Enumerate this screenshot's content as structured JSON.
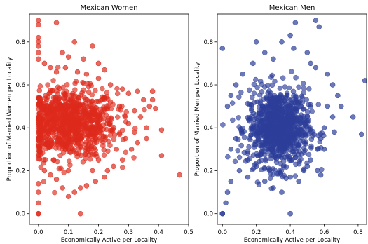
{
  "chart_data": [
    {
      "type": "scatter",
      "title": "Mexican Women",
      "xlabel": "Economically Active per Locality",
      "ylabel": "Proportion of Married Women per Locality",
      "xlim": [
        -0.03,
        0.5
      ],
      "ylim": [
        -0.05,
        0.93
      ],
      "xticks": [
        0.0,
        0.1,
        0.2,
        0.3,
        0.4,
        0.5
      ],
      "xtick_labels": [
        "0.0",
        "0.1",
        "0.2",
        "0.3",
        "0.4",
        "0.5"
      ],
      "yticks": [
        0.0,
        0.2,
        0.4,
        0.6,
        0.8
      ],
      "ytick_labels": [
        "0.0",
        "0.2",
        "0.4",
        "0.6",
        "0.8"
      ],
      "grid": false,
      "color": "#dd2a1b",
      "points": [
        [
          0.0,
          0.9
        ],
        [
          0.0,
          0.88
        ],
        [
          0.0,
          0.82
        ],
        [
          0.0,
          0.8
        ],
        [
          0.0,
          0.78
        ],
        [
          0.0,
          0.75
        ],
        [
          0.0,
          0.72
        ],
        [
          0.0,
          0.1
        ],
        [
          0.0,
          0.05
        ],
        [
          0.0,
          0.0
        ],
        [
          0.0,
          0.0
        ],
        [
          0.0,
          0.14
        ],
        [
          0.06,
          0.89
        ],
        [
          0.08,
          0.75
        ],
        [
          0.1,
          0.73
        ],
        [
          0.12,
          0.8
        ],
        [
          0.15,
          0.72
        ],
        [
          0.18,
          0.78
        ],
        [
          0.2,
          0.7
        ],
        [
          0.22,
          0.67
        ],
        [
          0.02,
          0.7
        ],
        [
          0.04,
          0.68
        ],
        [
          0.06,
          0.66
        ],
        [
          0.09,
          0.68
        ],
        [
          0.13,
          0.66
        ],
        [
          0.16,
          0.65
        ],
        [
          0.2,
          0.63
        ],
        [
          0.24,
          0.6
        ],
        [
          0.28,
          0.58
        ],
        [
          0.3,
          0.56
        ],
        [
          0.33,
          0.57
        ],
        [
          0.35,
          0.53
        ],
        [
          0.37,
          0.5
        ],
        [
          0.38,
          0.57
        ],
        [
          0.38,
          0.53
        ],
        [
          0.39,
          0.49
        ],
        [
          0.41,
          0.39
        ],
        [
          0.41,
          0.27
        ],
        [
          0.47,
          0.18
        ],
        [
          0.36,
          0.4
        ],
        [
          0.36,
          0.35
        ],
        [
          0.34,
          0.45
        ],
        [
          0.32,
          0.48
        ],
        [
          0.3,
          0.42
        ],
        [
          0.31,
          0.3
        ],
        [
          0.28,
          0.25
        ],
        [
          0.25,
          0.22
        ],
        [
          0.23,
          0.2
        ],
        [
          0.22,
          0.17
        ],
        [
          0.19,
          0.15
        ],
        [
          0.16,
          0.13
        ],
        [
          0.14,
          0.12
        ],
        [
          0.12,
          0.1
        ],
        [
          0.1,
          0.08
        ],
        [
          0.08,
          0.12
        ],
        [
          0.06,
          0.16
        ],
        [
          0.04,
          0.18
        ],
        [
          0.02,
          0.2
        ],
        [
          0.14,
          0.0
        ],
        [
          0.26,
          0.3
        ],
        [
          0.27,
          0.5
        ],
        [
          0.24,
          0.52
        ],
        [
          0.2,
          0.25
        ],
        [
          0.18,
          0.2
        ],
        [
          0.1,
          0.2
        ],
        [
          0.05,
          0.25
        ],
        [
          0.29,
          0.35
        ],
        [
          0.33,
          0.33
        ],
        [
          0.32,
          0.38
        ]
      ],
      "dense_region": {
        "x_center": 0.1,
        "y_center": 0.42,
        "x_spread": 0.08,
        "y_spread": 0.08
      }
    },
    {
      "type": "scatter",
      "title": "Mexican Men",
      "xlabel": "Economically Active per Locality",
      "ylabel": "Proportion of Married Men per Locality",
      "xlim": [
        -0.03,
        0.85
      ],
      "ylim": [
        -0.05,
        0.93
      ],
      "xticks": [
        0.0,
        0.2,
        0.4,
        0.6,
        0.8
      ],
      "xtick_labels": [
        "0.0",
        "0.2",
        "0.4",
        "0.6",
        "0.8"
      ],
      "yticks": [
        0.0,
        0.2,
        0.4,
        0.6,
        0.8
      ],
      "ytick_labels": [
        "0.0",
        "0.2",
        "0.4",
        "0.6",
        "0.8"
      ],
      "grid": false,
      "color": "#2c3e99",
      "points": [
        [
          0.0,
          0.77
        ],
        [
          0.0,
          0.0
        ],
        [
          0.0,
          0.0
        ],
        [
          0.02,
          0.05
        ],
        [
          0.03,
          0.1
        ],
        [
          0.05,
          0.15
        ],
        [
          0.4,
          0.0
        ],
        [
          0.55,
          0.9
        ],
        [
          0.57,
          0.87
        ],
        [
          0.43,
          0.89
        ],
        [
          0.4,
          0.83
        ],
        [
          0.35,
          0.8
        ],
        [
          0.2,
          0.8
        ],
        [
          0.42,
          0.77
        ],
        [
          0.84,
          0.62
        ],
        [
          0.82,
          0.37
        ],
        [
          0.77,
          0.45
        ],
        [
          0.7,
          0.5
        ],
        [
          0.68,
          0.55
        ],
        [
          0.65,
          0.6
        ],
        [
          0.62,
          0.65
        ],
        [
          0.6,
          0.4
        ],
        [
          0.58,
          0.35
        ],
        [
          0.56,
          0.3
        ],
        [
          0.52,
          0.25
        ],
        [
          0.56,
          0.2
        ],
        [
          0.58,
          0.18
        ],
        [
          0.48,
          0.2
        ],
        [
          0.45,
          0.15
        ],
        [
          0.35,
          0.1
        ],
        [
          0.3,
          0.12
        ],
        [
          0.25,
          0.15
        ],
        [
          0.15,
          0.17
        ],
        [
          0.1,
          0.2
        ],
        [
          0.05,
          0.3
        ],
        [
          0.03,
          0.5
        ],
        [
          0.05,
          0.55
        ],
        [
          0.08,
          0.6
        ],
        [
          0.12,
          0.65
        ],
        [
          0.18,
          0.7
        ],
        [
          0.25,
          0.75
        ],
        [
          0.3,
          0.72
        ],
        [
          0.5,
          0.75
        ],
        [
          0.52,
          0.7
        ],
        [
          0.55,
          0.68
        ],
        [
          0.62,
          0.5
        ],
        [
          0.65,
          0.45
        ],
        [
          0.66,
          0.38
        ],
        [
          0.6,
          0.3
        ],
        [
          0.5,
          0.22
        ],
        [
          0.4,
          0.17
        ],
        [
          0.2,
          0.22
        ],
        [
          0.15,
          0.25
        ],
        [
          0.08,
          0.35
        ]
      ],
      "dense_region": {
        "x_center": 0.33,
        "y_center": 0.4,
        "x_spread": 0.09,
        "y_spread": 0.09
      }
    }
  ]
}
